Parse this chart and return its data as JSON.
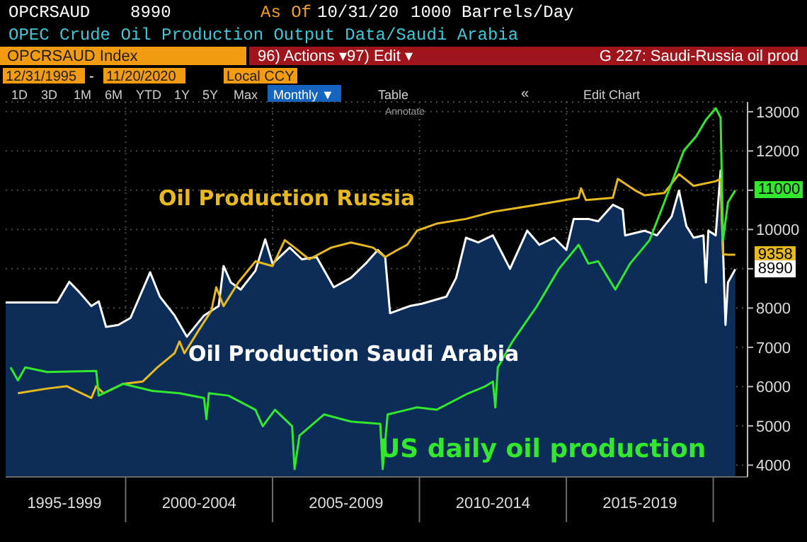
{
  "chart_data": {
    "type": "line",
    "title": "OPEC Crude Oil Production Output Data/Saudi Arabia",
    "annotations": [
      "OPCRSAUD",
      "8990",
      "As Of",
      "10/31/20",
      "1000 Barrels/Day",
      "OPCRSAUD Index",
      "96) Actions ▾",
      "97) Edit ▾",
      "G 227: Saudi-Russia oil prod",
      "12/31/1995",
      "-",
      "11/20/2020",
      "Local CCY",
      "1D",
      "3D",
      "1M",
      "6M",
      "YTD",
      "1Y",
      "5Y",
      "Max",
      "Monthly ▼",
      "Table",
      "«",
      "Edit Chart",
      "Annotate",
      {
        "text": "11000",
        "x": "2020-10",
        "y": 11000
      },
      {
        "text": "9358",
        "x": "2020-10",
        "y": 9358
      },
      {
        "text": "8990",
        "x": "2020-10",
        "y": 8990
      }
    ],
    "xlim": [
      "1995-12",
      "2021-03"
    ],
    "xticks": [
      {
        "value": "1997-12",
        "label": "1995-1999"
      },
      {
        "value": "2000-01",
        "label": null
      },
      {
        "value": "2002-07",
        "label": "2000-2004"
      },
      {
        "value": "2005-01",
        "label": null
      },
      {
        "value": "2007-07",
        "label": "2005-2009"
      },
      {
        "value": "2010-01",
        "label": null
      },
      {
        "value": "2012-07",
        "label": "2010-2014"
      },
      {
        "value": "2015-01",
        "label": null
      },
      {
        "value": "2017-07",
        "label": "2015-2019"
      },
      {
        "value": "2020-01",
        "label": null
      }
    ],
    "ylim": [
      3700,
      13250
    ],
    "yticks": [
      4000,
      5000,
      6000,
      7000,
      8000,
      {
        "value": 9000,
        "label": null
      },
      10000,
      {
        "value": 11000,
        "label": null
      },
      12000,
      13000
    ],
    "grid": true,
    "series": [
      {
        "name": "Oil Production Saudi Arabia",
        "type": "area",
        "color": "#ffffff",
        "x": [
          "1995-12",
          "1997-09",
          "1998-02",
          "1998-06",
          "1998-11",
          "1999-02",
          "1999-05",
          "1999-10",
          "2000-03",
          "2000-11",
          "2001-03",
          "2001-09",
          "2002-02",
          "2002-09",
          "2003-03",
          "2003-05",
          "2003-08",
          "2003-12",
          "2004-06",
          "2004-10",
          "2005-01",
          "2005-08",
          "2006-01",
          "2006-07",
          "2007-02",
          "2007-09",
          "2008-03",
          "2008-08",
          "2008-11",
          "2009-01",
          "2009-09",
          "2010-02",
          "2010-12",
          "2011-04",
          "2011-08",
          "2012-01",
          "2012-07",
          "2013-02",
          "2013-09",
          "2014-02",
          "2014-08",
          "2015-01",
          "2015-04",
          "2015-10",
          "2016-02",
          "2016-08",
          "2016-12",
          "2017-01",
          "2017-09",
          "2018-02",
          "2018-08",
          "2018-11",
          "2019-02",
          "2019-05",
          "2019-09",
          "2019-10",
          "2019-11",
          "2020-02",
          "2020-04",
          "2020-05",
          "2020-06",
          "2020-07",
          "2020-10"
        ],
        "values": [
          8140,
          8140,
          8670,
          8410,
          8050,
          8170,
          7520,
          7570,
          7750,
          8910,
          8290,
          7810,
          7270,
          7810,
          8050,
          9070,
          8650,
          8470,
          8950,
          9750,
          9130,
          9540,
          9240,
          9300,
          8530,
          8770,
          9130,
          9480,
          9300,
          7870,
          8050,
          8110,
          8290,
          8770,
          9790,
          9670,
          9850,
          9000,
          9970,
          9610,
          9790,
          9480,
          10270,
          10270,
          10210,
          10630,
          10510,
          9850,
          9970,
          9850,
          10330,
          10990,
          10090,
          9790,
          9850,
          8650,
          9970,
          9850,
          11500,
          9480,
          7570,
          8650,
          8990
        ]
      },
      {
        "name": "Oil Production Russia",
        "color": "#e6b91e",
        "x": [
          "1996-05",
          "1997-05",
          "1998-01",
          "1998-07",
          "1998-11",
          "1999-01",
          "1999-04",
          "1999-12",
          "2000-08",
          "2001-02",
          "2001-09",
          "2001-11",
          "2002-01",
          "2002-07",
          "2002-12",
          "2003-02",
          "2003-05",
          "2003-11",
          "2004-06",
          "2005-01",
          "2005-06",
          "2005-10",
          "2006-04",
          "2007-01",
          "2007-09",
          "2008-06",
          "2008-11",
          "2009-04",
          "2009-08",
          "2009-12",
          "2010-08",
          "2011-08",
          "2012-07",
          "2013-07",
          "2014-07",
          "2015-06",
          "2015-07",
          "2015-09",
          "2016-08",
          "2016-10",
          "2017-05",
          "2017-09",
          "2018-05",
          "2018-11",
          "2019-05",
          "2020-02",
          "2020-04",
          "2020-05",
          "2020-07",
          "2020-10"
        ],
        "values": [
          5830,
          5950,
          6010,
          5830,
          5710,
          6010,
          5830,
          6070,
          6130,
          6490,
          6850,
          7150,
          6850,
          7450,
          7930,
          8530,
          8050,
          8650,
          9190,
          9070,
          9730,
          9540,
          9240,
          9540,
          9670,
          9540,
          9300,
          9480,
          9610,
          9970,
          10150,
          10270,
          10450,
          10570,
          10690,
          10810,
          11050,
          10750,
          10810,
          11290,
          11000,
          10870,
          10930,
          11410,
          11110,
          11230,
          11290,
          9370,
          9360,
          9358
        ]
      },
      {
        "name": "US daily oil production",
        "color": "#33e62e",
        "x": [
          "1996-02",
          "1996-05",
          "1996-08",
          "1997-05",
          "1999-01",
          "1999-02",
          "1999-12",
          "2000-12",
          "2001-11",
          "2002-09",
          "2002-10",
          "2002-11",
          "2003-07",
          "2004-06",
          "2004-09",
          "2005-02",
          "2005-09",
          "2005-10",
          "2005-12",
          "2006-10",
          "2007-09",
          "2008-09",
          "2008-10",
          "2008-12",
          "2009-08",
          "2009-12",
          "2010-08",
          "2011-09",
          "2012-04",
          "2012-07",
          "2012-08",
          "2012-09",
          "2013-03",
          "2014-01",
          "2014-10",
          "2015-06",
          "2015-10",
          "2016-02",
          "2016-09",
          "2017-03",
          "2017-11",
          "2018-05",
          "2019-01",
          "2019-06",
          "2019-10",
          "2020-02",
          "2020-04",
          "2020-05",
          "2020-07",
          "2020-10"
        ],
        "values": [
          6490,
          6160,
          6490,
          6370,
          6400,
          5770,
          6070,
          5890,
          5830,
          5710,
          5170,
          5830,
          5770,
          5410,
          4990,
          5410,
          4990,
          3900,
          4750,
          5290,
          5110,
          5050,
          3900,
          5290,
          5410,
          5470,
          5410,
          5830,
          6010,
          6130,
          5470,
          6490,
          7150,
          8050,
          9000,
          9610,
          9130,
          9190,
          8470,
          9130,
          9730,
          10690,
          12010,
          12370,
          12790,
          13090,
          12850,
          9730,
          10690,
          11000
        ]
      }
    ]
  }
}
